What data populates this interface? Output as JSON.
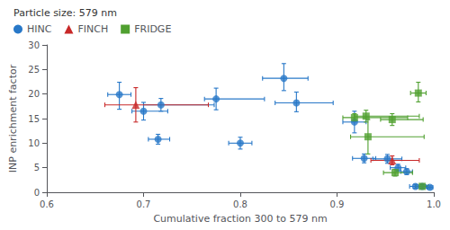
{
  "chart_data": {
    "type": "scatter",
    "legend_title": "Particle size: 579 nm",
    "xlabel": "Cumulative fraction 300 to 579 nm",
    "ylabel": "INP enrichment factor",
    "xlim": [
      0.6,
      1.0
    ],
    "ylim": [
      0,
      30
    ],
    "xticks": [
      0.6,
      0.7,
      0.8,
      0.9,
      {
        "value": 1.0,
        "label": "1.0"
      }
    ],
    "yticks": [
      0,
      5,
      10,
      15,
      20,
      25,
      30
    ],
    "grid": false,
    "legend": "upper left",
    "series": [
      {
        "name": "HINC",
        "color": "#2878c8",
        "marker": "circle",
        "x": [
          0.675,
          0.7,
          0.718,
          0.715,
          0.775,
          0.8,
          0.845,
          0.858,
          0.918,
          0.928,
          0.952,
          0.963,
          0.972,
          0.981,
          0.988,
          0.996
        ],
        "values": [
          19.9,
          16.5,
          17.8,
          10.8,
          19.0,
          10.0,
          23.2,
          18.2,
          14.3,
          6.9,
          6.8,
          5.0,
          4.2,
          1.2,
          1.2,
          1.0
        ],
        "xerr_lo": [
          0.012,
          0.012,
          0.018,
          0.01,
          0.012,
          0.012,
          0.022,
          0.022,
          0.012,
          0.012,
          0.015,
          0.008,
          0.006,
          0.006,
          0.004,
          0.003
        ],
        "xerr_hi": [
          0.012,
          0.025,
          0.055,
          0.012,
          0.05,
          0.012,
          0.025,
          0.038,
          0.012,
          0.012,
          0.015,
          0.008,
          0.006,
          0.008,
          0.004,
          0.003
        ],
        "yerr_lo": [
          3.0,
          1.8,
          1.3,
          1.0,
          2.2,
          1.2,
          2.5,
          1.8,
          2.2,
          0.9,
          0.9,
          0.7,
          0.6,
          0.4,
          0.4,
          0.3
        ],
        "yerr_hi": [
          2.5,
          1.8,
          1.3,
          1.0,
          2.2,
          1.2,
          3.0,
          2.2,
          2.2,
          0.9,
          0.9,
          0.7,
          0.6,
          0.4,
          0.4,
          0.3
        ]
      },
      {
        "name": "FINCH",
        "color": "#c82828",
        "marker": "triangle",
        "x": [
          0.692,
          0.957
        ],
        "values": [
          17.8,
          6.5
        ],
        "xerr_lo": [
          0.032,
          0.022
        ],
        "xerr_hi": [
          0.075,
          0.028
        ],
        "yerr_lo": [
          3.5,
          0.9
        ],
        "yerr_hi": [
          3.5,
          0.9
        ]
      },
      {
        "name": "FRIDGE",
        "color": "#50a030",
        "marker": "square",
        "x": [
          0.918,
          0.93,
          0.932,
          0.957,
          0.96,
          0.984,
          0.988
        ],
        "values": [
          15.2,
          15.5,
          11.3,
          14.8,
          4.0,
          20.2,
          1.2
        ],
        "xerr_lo": [
          0.012,
          0.012,
          0.018,
          0.012,
          0.012,
          0.008,
          0.006
        ],
        "xerr_hi": [
          0.055,
          0.055,
          0.058,
          0.032,
          0.018,
          0.008,
          0.006
        ],
        "yerr_lo": [
          0.8,
          1.2,
          3.5,
          1.2,
          0.7,
          1.8,
          0.4
        ],
        "yerr_hi": [
          0.8,
          1.2,
          3.5,
          1.2,
          0.7,
          2.2,
          0.4
        ]
      }
    ]
  }
}
